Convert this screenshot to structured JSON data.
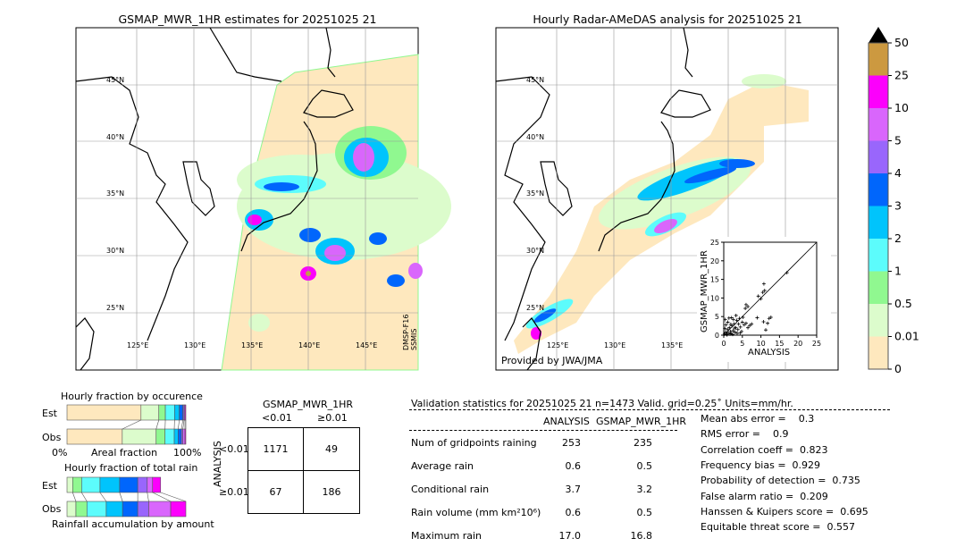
{
  "map_left": {
    "title": "GSMAP_MWR_1HR estimates for 20251025 21",
    "lat_labels": [
      "45°N",
      "40°N",
      "35°N",
      "30°N",
      "25°N"
    ],
    "lon_labels": [
      "125°E",
      "130°E",
      "135°E",
      "140°E",
      "145°E"
    ],
    "sensor_line1": "DMSP-F16",
    "sensor_line2": "SSMIS"
  },
  "map_right": {
    "title": "Hourly Radar-AMeDAS analysis for 20251025 21",
    "lat_labels": [
      "45°N",
      "40°N",
      "35°N",
      "30°N",
      "25°N"
    ],
    "lon_labels": [
      "125°E",
      "130°E",
      "135°E"
    ],
    "credit": "Provided by JWA/JMA"
  },
  "colorbar": {
    "labels": [
      "0",
      "0.01",
      "0.5",
      "1",
      "2",
      "3",
      "4",
      "5",
      "10",
      "25",
      "50"
    ],
    "colors": [
      "#fee8be",
      "#dcfccc",
      "#90f890",
      "#5cfcfc",
      "#00c4fc",
      "#0066fc",
      "#9966fc",
      "#d966fc",
      "#fc00fc",
      "#cc9940"
    ],
    "extend_color": "#000000"
  },
  "chart_data": [
    {
      "type": "scatter",
      "xlabel": "ANALYSIS",
      "ylabel": "GSMAP_MWR_1HR",
      "xlim": [
        0,
        25
      ],
      "ylim": [
        0,
        25
      ],
      "xticks": [
        "0",
        "5",
        "10",
        "15",
        "20",
        "25"
      ],
      "yticks": [
        "0",
        "5",
        "10",
        "15",
        "20",
        "25"
      ],
      "points": [
        [
          0.2,
          0.3
        ],
        [
          0.5,
          0.8
        ],
        [
          0.8,
          0.2
        ],
        [
          1,
          1.5
        ],
        [
          1.2,
          0.6
        ],
        [
          1.5,
          2
        ],
        [
          1.8,
          1
        ],
        [
          2,
          0.4
        ],
        [
          2.2,
          2.5
        ],
        [
          2.5,
          1.2
        ],
        [
          2.8,
          3
        ],
        [
          3,
          0.8
        ],
        [
          3.2,
          2
        ],
        [
          3.5,
          4
        ],
        [
          3.8,
          1.5
        ],
        [
          4,
          3
        ],
        [
          4.2,
          4.5
        ],
        [
          4.5,
          2.2
        ],
        [
          0.3,
          1.8
        ],
        [
          0.6,
          2.8
        ],
        [
          1.1,
          3.5
        ],
        [
          1.4,
          4.6
        ],
        [
          2.1,
          4.7
        ],
        [
          2.6,
          4.2
        ],
        [
          3.3,
          5.3
        ],
        [
          0.9,
          0.1
        ],
        [
          1.7,
          0.3
        ],
        [
          2.4,
          0.2
        ],
        [
          5,
          3.5
        ],
        [
          5.5,
          2.8
        ],
        [
          6,
          3.2
        ],
        [
          6.5,
          2
        ],
        [
          7,
          2.6
        ],
        [
          7.5,
          3
        ],
        [
          5.8,
          7.2
        ],
        [
          6,
          8.2
        ],
        [
          6.5,
          7.7
        ],
        [
          5.2,
          4.8
        ],
        [
          9,
          4.7
        ],
        [
          9.3,
          10.5
        ],
        [
          10,
          9.8
        ],
        [
          10.5,
          11.5
        ],
        [
          10.8,
          13.8
        ],
        [
          11,
          12
        ],
        [
          10.7,
          3.6
        ],
        [
          11.3,
          1.4
        ],
        [
          11.8,
          3.2
        ],
        [
          12.2,
          4.5
        ],
        [
          12.7,
          4.8
        ],
        [
          17,
          16.8
        ],
        [
          4.8,
          1
        ],
        [
          3.6,
          0.5
        ],
        [
          0.4,
          4.2
        ],
        [
          1.9,
          2.9
        ],
        [
          2.9,
          1.9
        ],
        [
          4.4,
          0.6
        ]
      ]
    },
    {
      "type": "bar",
      "title": "Hourly fraction by occurence",
      "xlabel": "Areal fraction",
      "x_left": "0%",
      "x_right": "100%",
      "categories": [
        "Est",
        "Obs"
      ],
      "bins": [
        "0-0.01",
        "0.01-0.5",
        "0.5-1",
        "1-2",
        "2-3",
        "3-4",
        "4-5",
        "5-10",
        "10-25"
      ],
      "series": [
        {
          "name": "Est",
          "values": [
            0.6225,
            0.15,
            0.055,
            0.0775,
            0.04,
            0.03,
            0.01,
            0.0075,
            0.0075
          ]
        },
        {
          "name": "Obs",
          "values": [
            0.465,
            0.285,
            0.075,
            0.0775,
            0.0325,
            0.0275,
            0.0125,
            0.0175,
            0.0075
          ]
        }
      ]
    },
    {
      "type": "bar",
      "title": "Hourly fraction of total rain",
      "xlabel": "Rainfall accumulation by amount",
      "categories": [
        "Est",
        "Obs"
      ],
      "bins": [
        "0.01-0.5",
        "0.5-1",
        "1-2",
        "2-3",
        "3-4",
        "4-5",
        "5-10",
        "10-25"
      ],
      "series": [
        {
          "name": "Est",
          "values": [
            0.0475,
            0.075,
            0.155,
            0.165,
            0.1525,
            0.08,
            0.045,
            0.0675
          ]
        },
        {
          "name": "Obs",
          "values": [
            0.075,
            0.0925,
            0.1625,
            0.1375,
            0.1275,
            0.0925,
            0.185,
            0.1275
          ]
        }
      ]
    }
  ],
  "contingency": {
    "title": "GSMAP_MWR_1HR",
    "col_headers": [
      "<0.01",
      "≥0.01"
    ],
    "row_label": "ANALYSIS",
    "row_headers": [
      "<0.01",
      "≥0.01"
    ],
    "cells": [
      [
        "1171",
        "49"
      ],
      [
        "67",
        "186"
      ]
    ]
  },
  "stats": {
    "header": "Validation statistics for 20251025 21  n=1473 Valid. grid=0.25˚ Units=mm/hr.",
    "col1": "ANALYSIS",
    "col2": "GSMAP_MWR_1HR",
    "rows": [
      {
        "label": "Num of gridpoints raining",
        "a": "253",
        "g": "235"
      },
      {
        "label": "Average rain",
        "a": "0.6",
        "g": "0.5"
      },
      {
        "label": "Conditional rain",
        "a": "3.7",
        "g": "3.2"
      },
      {
        "label": "Rain volume (mm km²10⁶)",
        "a": "0.6",
        "g": "0.5"
      },
      {
        "label": "Maximum rain",
        "a": "17.0",
        "g": "16.8"
      }
    ],
    "scores": [
      "Mean abs error =    0.3",
      "RMS error =    0.9",
      "Correlation coeff =  0.823",
      "Frequency bias =  0.929",
      "Probability of detection =  0.735",
      "False alarm ratio =  0.209",
      "Hanssen & Kuipers score =  0.695",
      "Equitable threat score =  0.557"
    ]
  }
}
